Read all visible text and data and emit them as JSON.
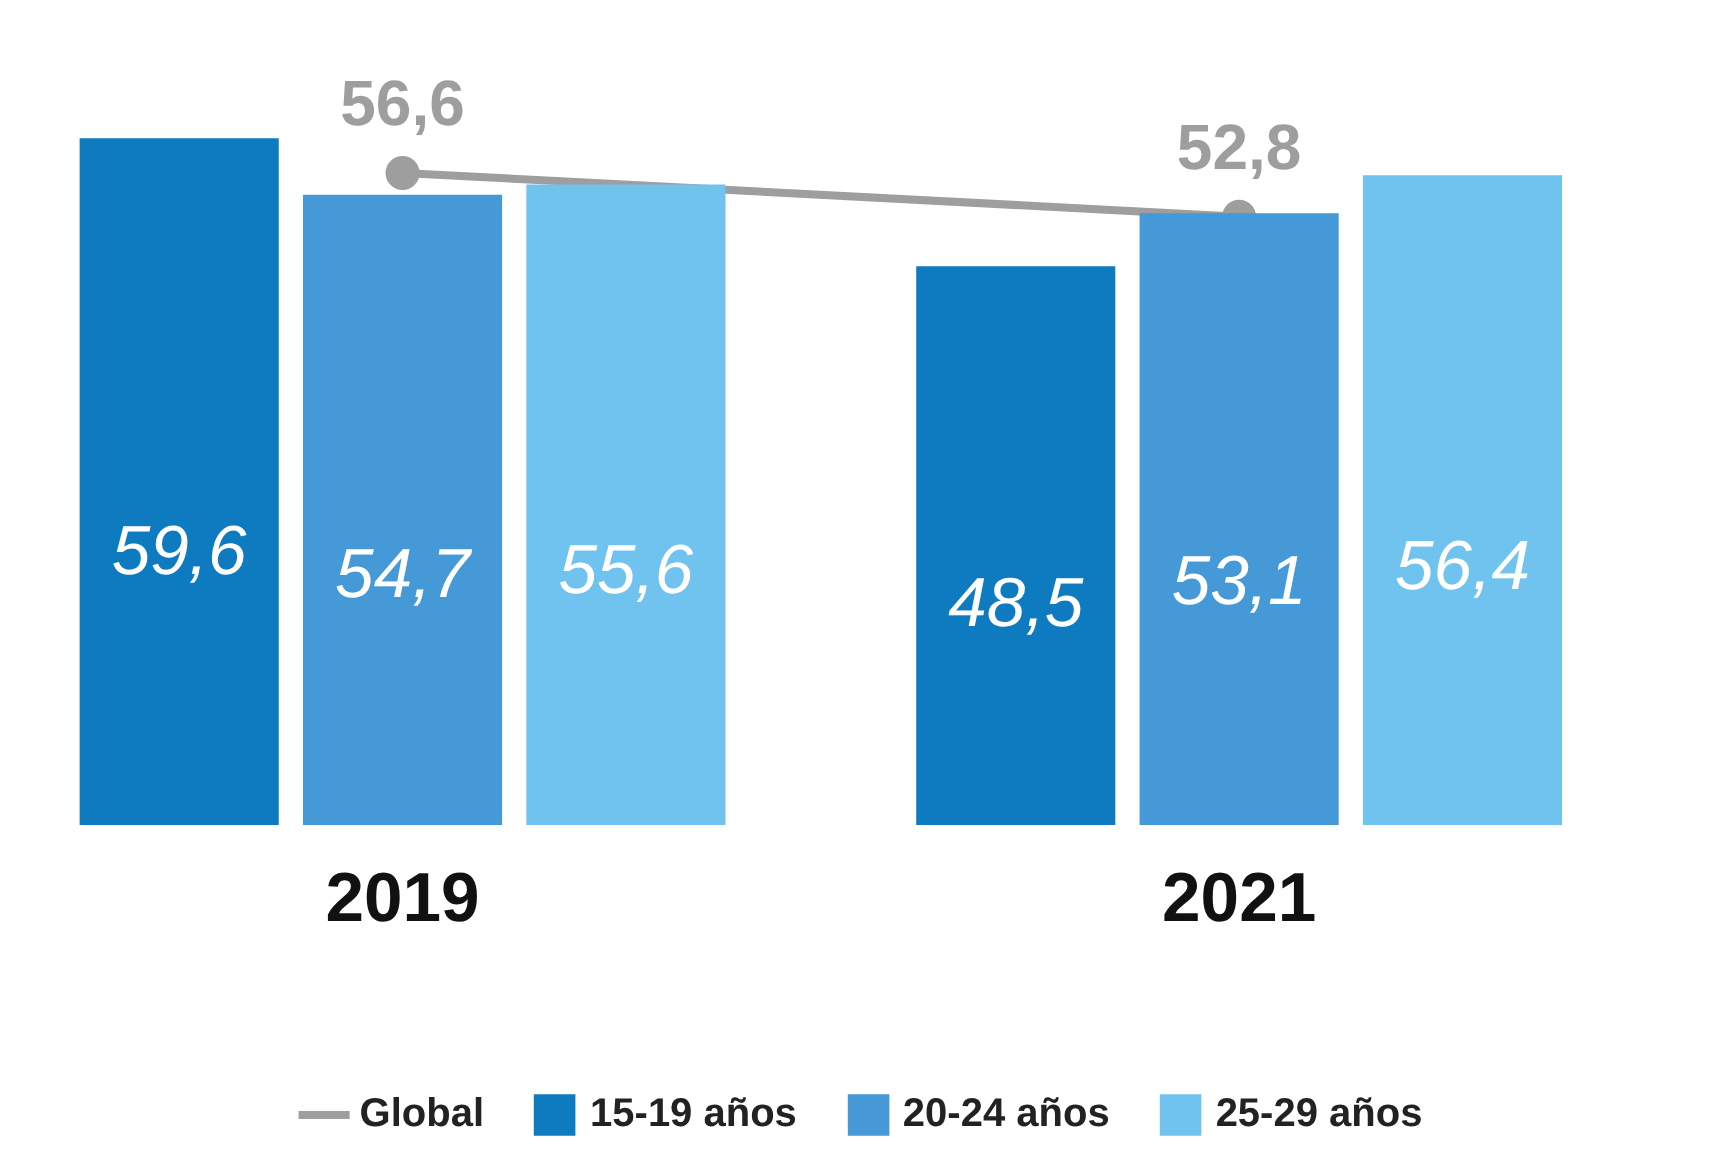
{
  "chart_data": {
    "type": "bar",
    "categories": [
      "2019",
      "2021"
    ],
    "series": [
      {
        "name": "Global",
        "type": "line",
        "color": "#9e9e9e",
        "values": [
          56.6,
          52.8
        ],
        "value_labels": [
          "56,6",
          "52,8"
        ]
      },
      {
        "name": "15-19 años",
        "color": "#0e7abf",
        "values": [
          59.6,
          48.5
        ],
        "value_labels": [
          "59,6",
          "48,5"
        ]
      },
      {
        "name": "20-24 años",
        "color": "#4599d6",
        "values": [
          54.7,
          53.1
        ],
        "value_labels": [
          "54,7",
          "53,1"
        ]
      },
      {
        "name": "25-29 años",
        "color": "#6fc3ee",
        "values": [
          55.6,
          56.4
        ],
        "value_labels": [
          "55,6",
          "56,4"
        ]
      }
    ],
    "legend": "bottom",
    "marker": "circle"
  }
}
